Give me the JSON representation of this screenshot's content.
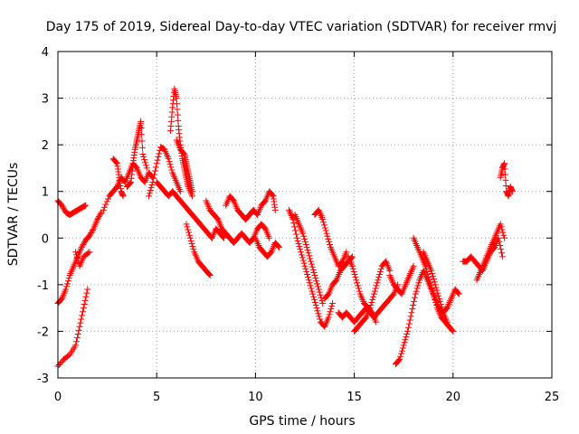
{
  "chart_data": {
    "type": "scatter",
    "title": "Day 175 of 2019, Sidereal Day-to-day VTEC variation (SDTVAR) for receiver rmvj",
    "xlabel": "GPS time / hours",
    "ylabel": "SDTVAR / TECUs",
    "xlim": [
      0,
      25
    ],
    "ylim": [
      -3,
      4
    ],
    "xticks": [
      0,
      5,
      10,
      15,
      20,
      25
    ],
    "yticks": [
      -3,
      -2,
      -1,
      0,
      1,
      2,
      3,
      4
    ],
    "grid": true,
    "marker": "+",
    "series": [
      {
        "name": "SDTVAR",
        "color": "#ff0000",
        "segments": [
          {
            "x": [
              0.0,
              0.2,
              0.4,
              0.6,
              0.8,
              1.0,
              1.2,
              1.4
            ],
            "y": [
              0.8,
              0.7,
              0.55,
              0.5,
              0.55,
              0.6,
              0.65,
              0.7
            ]
          },
          {
            "x": [
              0.0,
              0.2,
              0.4,
              0.6,
              0.8,
              1.0,
              1.2,
              1.4,
              1.6,
              1.8,
              2.0,
              2.2
            ],
            "y": [
              -1.4,
              -1.3,
              -1.1,
              -0.8,
              -0.6,
              -0.4,
              -0.2,
              -0.05,
              0.05,
              0.2,
              0.4,
              0.55
            ]
          },
          {
            "x": [
              0.0,
              0.3,
              0.6,
              0.9,
              1.1,
              1.3,
              1.5
            ],
            "y": [
              -2.75,
              -2.6,
              -2.5,
              -2.3,
              -1.9,
              -1.5,
              -1.1
            ]
          },
          {
            "x": [
              0.9,
              1.1,
              1.3,
              1.6
            ],
            "y": [
              -0.3,
              -0.6,
              -0.4,
              -0.3
            ]
          },
          {
            "x": [
              2.3,
              2.6,
              2.8,
              3.0,
              3.2,
              3.4,
              3.6,
              3.8,
              4.0,
              4.2,
              4.4,
              4.6,
              4.8
            ],
            "y": [
              0.6,
              0.9,
              1.0,
              1.1,
              1.3,
              1.2,
              1.4,
              1.6,
              1.5,
              1.3,
              1.2,
              1.4,
              1.3
            ]
          },
          {
            "x": [
              2.8,
              3.0,
              3.1,
              3.2,
              3.3
            ],
            "y": [
              1.7,
              1.6,
              1.3,
              1.0,
              0.9
            ]
          },
          {
            "x": [
              3.5,
              3.7,
              3.8,
              3.9,
              4.0,
              4.1,
              4.2,
              4.3,
              4.5
            ],
            "y": [
              1.1,
              1.2,
              1.6,
              1.9,
              2.1,
              2.3,
              2.5,
              1.8,
              1.5
            ]
          },
          {
            "x": [
              4.6,
              4.8,
              5.0,
              5.2,
              5.4,
              5.6,
              5.8,
              6.0,
              6.2
            ],
            "y": [
              0.9,
              1.2,
              1.6,
              1.95,
              1.9,
              1.7,
              1.4,
              1.2,
              1.0
            ]
          },
          {
            "x": [
              5.7,
              5.8,
              5.9,
              6.0,
              6.1,
              6.2,
              6.3,
              6.4,
              6.5,
              6.6,
              6.8
            ],
            "y": [
              2.3,
              2.8,
              3.2,
              3.0,
              2.4,
              2.0,
              1.7,
              1.5,
              1.3,
              1.1,
              0.9
            ]
          },
          {
            "x": [
              6.0,
              6.2,
              6.4,
              6.5,
              6.6,
              6.7,
              6.8
            ],
            "y": [
              2.1,
              1.9,
              1.8,
              1.6,
              1.4,
              1.2,
              1.0
            ]
          },
          {
            "x": [
              5.0,
              5.2,
              5.4,
              5.6,
              5.8,
              6.0,
              6.2,
              6.4,
              6.6,
              6.8,
              7.0,
              7.2,
              7.4,
              7.6,
              7.8,
              8.0,
              8.2,
              8.4
            ],
            "y": [
              1.2,
              1.1,
              1.0,
              0.9,
              1.0,
              0.9,
              0.8,
              0.7,
              0.6,
              0.5,
              0.4,
              0.3,
              0.2,
              0.1,
              0.0,
              0.2,
              0.1,
              0.0
            ]
          },
          {
            "x": [
              6.5,
              6.7,
              6.9,
              7.1,
              7.3,
              7.5,
              7.7
            ],
            "y": [
              0.3,
              0.0,
              -0.3,
              -0.5,
              -0.6,
              -0.7,
              -0.8
            ]
          },
          {
            "x": [
              7.5,
              7.7,
              7.9,
              8.1,
              8.3,
              8.5,
              8.7,
              8.9,
              9.1,
              9.3,
              9.5,
              9.7,
              9.9,
              10.1,
              10.3,
              10.5,
              10.7
            ],
            "y": [
              0.8,
              0.6,
              0.5,
              0.4,
              0.2,
              0.1,
              0.0,
              -0.1,
              0.0,
              0.1,
              0.0,
              -0.1,
              0.0,
              0.2,
              0.3,
              0.2,
              0.0
            ]
          },
          {
            "x": [
              8.5,
              8.7,
              8.9,
              9.1,
              9.3,
              9.5,
              9.7,
              9.9
            ],
            "y": [
              0.7,
              0.9,
              0.8,
              0.6,
              0.5,
              0.4,
              0.5,
              0.6
            ]
          },
          {
            "x": [
              9.5,
              9.7,
              9.9,
              10.1,
              10.3,
              10.5,
              10.7,
              10.9,
              11.0
            ],
            "y": [
              0.4,
              0.5,
              0.6,
              0.5,
              0.7,
              0.8,
              1.0,
              0.9,
              0.6
            ]
          },
          {
            "x": [
              10.0,
              10.2,
              10.4,
              10.6,
              10.8,
              11.0,
              11.2
            ],
            "y": [
              0.0,
              -0.2,
              -0.3,
              -0.4,
              -0.3,
              -0.1,
              -0.2
            ]
          },
          {
            "x": [
              11.7,
              11.9,
              12.1,
              12.3,
              12.5,
              12.7,
              12.9,
              13.1,
              13.3,
              13.5,
              13.7,
              13.9
            ],
            "y": [
              0.6,
              0.4,
              0.0,
              -0.3,
              -0.6,
              -0.9,
              -1.2,
              -1.5,
              -1.8,
              -1.9,
              -1.7,
              -1.4
            ]
          },
          {
            "x": [
              12.0,
              12.2,
              12.4,
              12.6,
              12.8,
              13.0,
              13.2,
              13.4
            ],
            "y": [
              0.5,
              0.3,
              0.1,
              -0.2,
              -0.5,
              -0.8,
              -1.1,
              -1.4
            ]
          },
          {
            "x": [
              13.0,
              13.2,
              13.4,
              13.6,
              13.8,
              14.0,
              14.2,
              14.4,
              14.6
            ],
            "y": [
              0.5,
              0.6,
              0.4,
              0.1,
              -0.2,
              -0.4,
              -0.6,
              -0.5,
              -0.3
            ]
          },
          {
            "x": [
              13.5,
              13.7,
              13.9,
              14.1,
              14.3,
              14.5,
              14.7,
              14.9
            ],
            "y": [
              -1.3,
              -1.2,
              -1.0,
              -0.9,
              -0.7,
              -0.6,
              -0.5,
              -0.4
            ]
          },
          {
            "x": [
              14.7,
              14.9,
              15.1,
              15.3,
              15.5,
              15.7,
              15.9,
              16.1
            ],
            "y": [
              -0.4,
              -0.6,
              -0.9,
              -1.2,
              -1.4,
              -1.5,
              -1.6,
              -1.8
            ]
          },
          {
            "x": [
              14.2,
              14.4,
              14.6,
              14.8,
              15.0,
              15.2,
              15.4,
              15.6,
              15.8,
              16.0,
              16.2,
              16.4,
              16.6,
              16.8,
              17.0,
              17.2
            ],
            "y": [
              -1.6,
              -1.7,
              -1.6,
              -1.7,
              -1.8,
              -1.7,
              -1.6,
              -1.5,
              -1.6,
              -1.7,
              -1.6,
              -1.5,
              -1.4,
              -1.3,
              -1.2,
              -1.0
            ]
          },
          {
            "x": [
              15.0,
              15.2,
              15.4,
              15.6,
              15.8,
              16.0,
              16.2,
              16.4,
              16.6,
              16.8
            ],
            "y": [
              -2.0,
              -1.9,
              -1.8,
              -1.7,
              -1.5,
              -1.2,
              -0.9,
              -0.6,
              -0.5,
              -0.7
            ]
          },
          {
            "x": [
              16.8,
              17.0,
              17.2,
              17.4,
              17.6,
              17.8,
              18.0
            ],
            "y": [
              -0.8,
              -1.0,
              -1.1,
              -1.2,
              -1.0,
              -0.8,
              -0.6
            ]
          },
          {
            "x": [
              17.1,
              17.3,
              17.5,
              17.7,
              17.9,
              18.1,
              18.3,
              18.5,
              18.7,
              18.9,
              19.1,
              19.3,
              19.5,
              19.7,
              19.9,
              20.1,
              20.3
            ],
            "y": [
              -2.7,
              -2.6,
              -2.3,
              -2.0,
              -1.6,
              -1.2,
              -0.9,
              -0.7,
              -0.9,
              -1.1,
              -1.3,
              -1.5,
              -1.6,
              -1.5,
              -1.3,
              -1.1,
              -1.2
            ]
          },
          {
            "x": [
              18.0,
              18.2,
              18.4,
              18.6,
              18.8,
              19.0,
              19.2,
              19.4,
              19.6,
              19.8,
              20.0
            ],
            "y": [
              0.0,
              -0.2,
              -0.4,
              -0.6,
              -0.9,
              -1.2,
              -1.5,
              -1.7,
              -1.8,
              -1.9,
              -2.0
            ]
          },
          {
            "x": [
              18.5,
              18.7,
              18.9,
              19.1,
              19.3,
              19.5,
              19.7
            ],
            "y": [
              -0.3,
              -0.5,
              -0.7,
              -1.0,
              -1.3,
              -1.6,
              -1.8
            ]
          },
          {
            "x": [
              20.5,
              20.7,
              20.9,
              21.1,
              21.3,
              21.5,
              21.7,
              21.9,
              22.1,
              22.3,
              22.5
            ],
            "y": [
              -0.5,
              -0.5,
              -0.4,
              -0.5,
              -0.6,
              -0.7,
              -0.5,
              -0.3,
              -0.2,
              0.0,
              -0.4
            ]
          },
          {
            "x": [
              21.2,
              21.4,
              21.6,
              21.8,
              22.0,
              22.2,
              22.4,
              22.6
            ],
            "y": [
              -0.9,
              -0.7,
              -0.5,
              -0.3,
              -0.1,
              0.1,
              0.3,
              0.0
            ]
          },
          {
            "x": [
              22.4,
              22.5,
              22.6,
              22.7,
              22.8,
              22.9,
              23.0
            ],
            "y": [
              1.3,
              1.5,
              1.6,
              1.0,
              0.9,
              1.1,
              1.0
            ]
          }
        ]
      }
    ]
  }
}
